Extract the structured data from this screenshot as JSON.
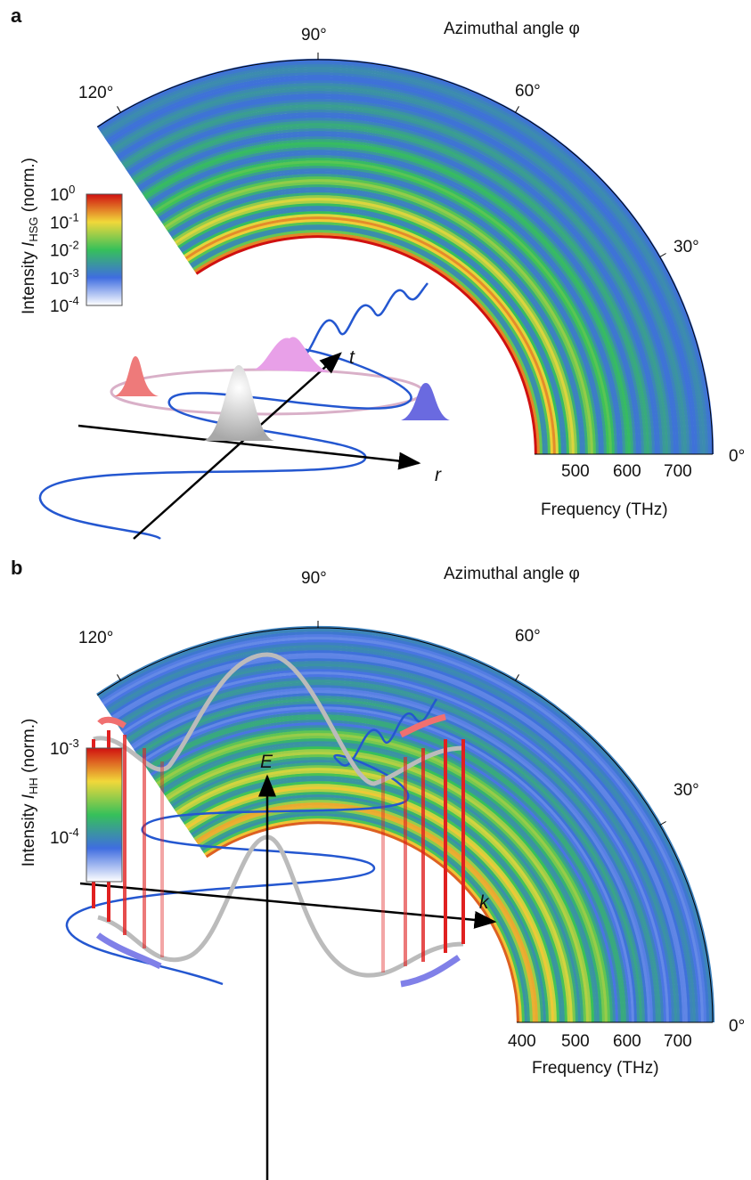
{
  "panels": [
    {
      "label": "a",
      "angle_title": "Azimuthal angle φ",
      "angles": [
        "0°",
        "30°",
        "60°",
        "90°",
        "120°"
      ],
      "freq_ticks": [
        "500",
        "600",
        "700"
      ],
      "freq_title": "Frequency (THz)",
      "cbar": {
        "prefix": "Intensity ",
        "symbol": "I",
        "sub": "HSG",
        "suffix": " (norm.)",
        "ticks": [
          {
            "base": "10",
            "exp": "0"
          },
          {
            "base": "10",
            "exp": "-1"
          },
          {
            "base": "10",
            "exp": "-2"
          },
          {
            "base": "10",
            "exp": "-3"
          },
          {
            "base": "10",
            "exp": "-4"
          }
        ]
      },
      "axes": [
        "t",
        "r"
      ]
    },
    {
      "label": "b",
      "angle_title": "Azimuthal angle φ",
      "angles": [
        "0°",
        "30°",
        "60°",
        "90°",
        "120°"
      ],
      "freq_ticks": [
        "400",
        "500",
        "600",
        "700"
      ],
      "freq_title": "Frequency (THz)",
      "cbar": {
        "prefix": "Intensity ",
        "symbol": "I",
        "sub": "HH",
        "suffix": " (norm.)",
        "ticks": [
          {
            "base": "10",
            "exp": "-3"
          },
          {
            "base": "10",
            "exp": "-4"
          }
        ]
      },
      "axes": [
        "E",
        "k"
      ]
    }
  ]
}
